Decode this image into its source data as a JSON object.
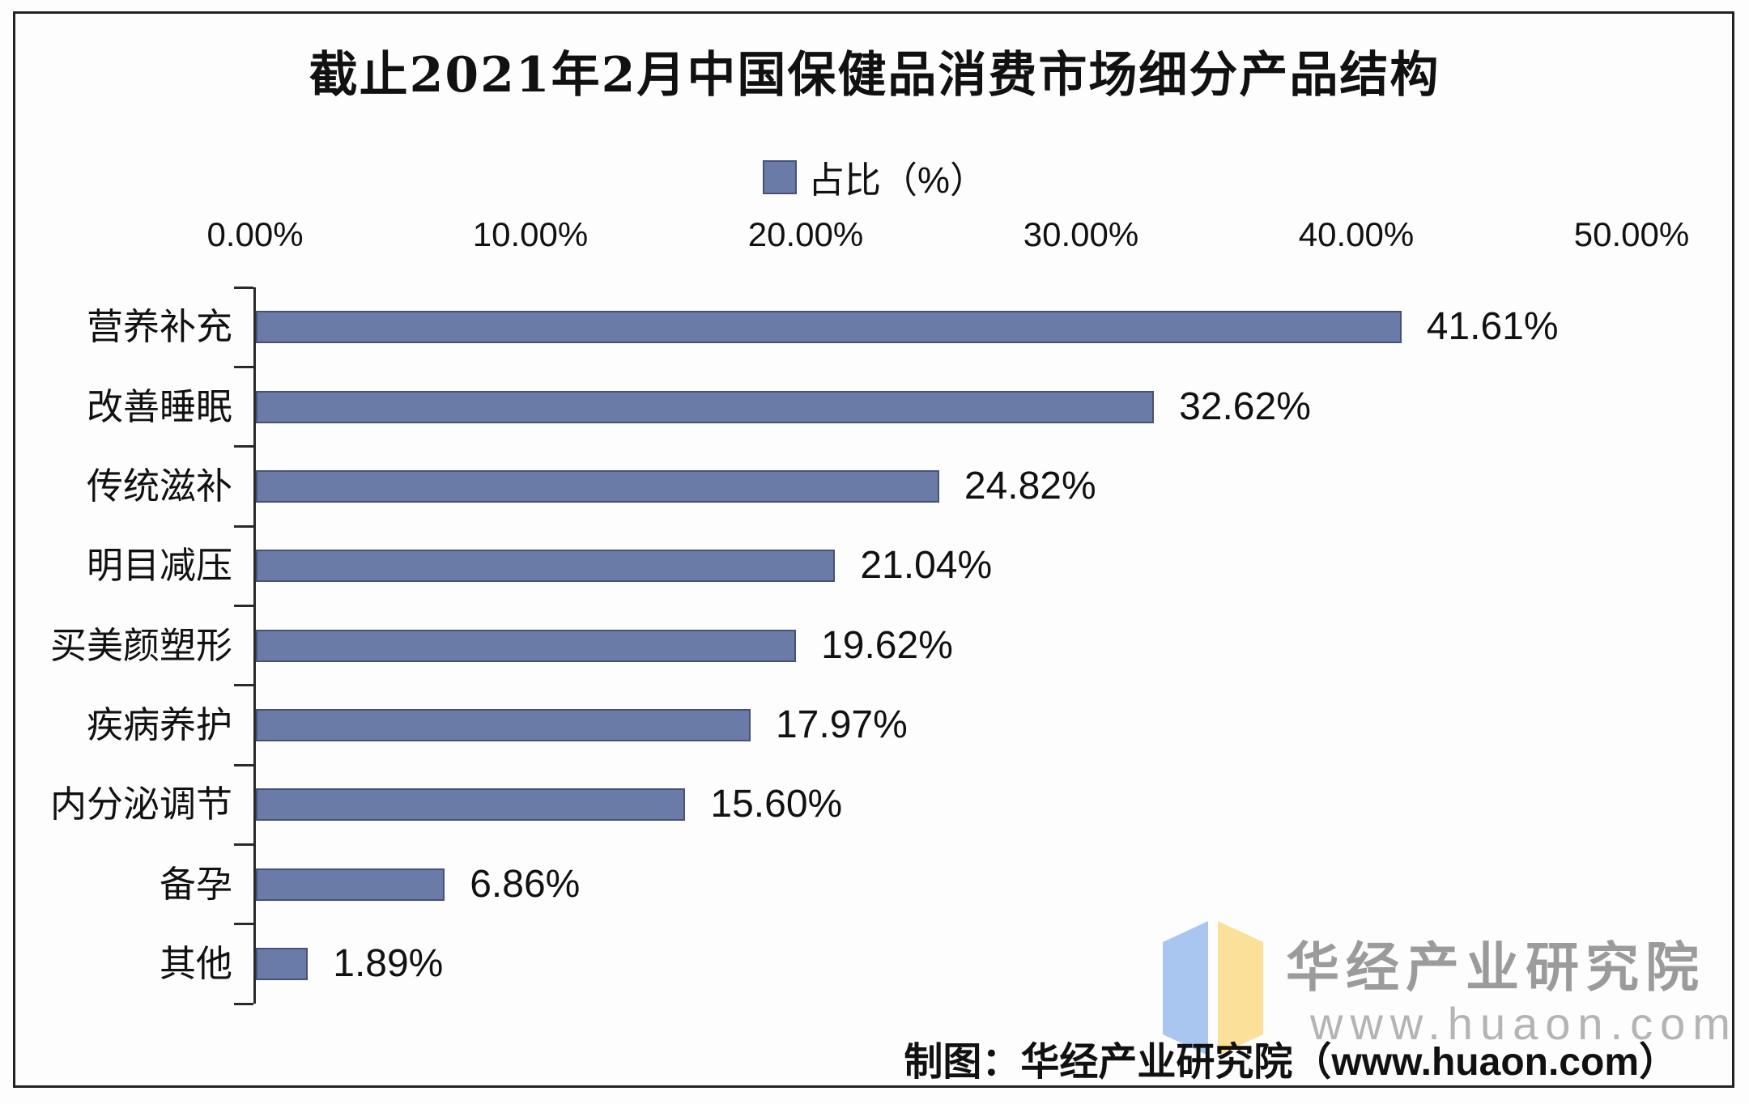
{
  "chart_data": {
    "type": "bar",
    "orientation": "horizontal",
    "title": "截止2021年2月中国保健品消费市场细分产品结构",
    "legend": "占比（%）",
    "categories": [
      "营养补充",
      "改善睡眠",
      "传统滋补",
      "明目减压",
      "买美颜塑形",
      "疾病养护",
      "内分泌调节",
      "备孕",
      "其他"
    ],
    "values": [
      41.61,
      32.62,
      24.82,
      21.04,
      19.62,
      17.97,
      15.6,
      6.86,
      1.89
    ],
    "value_labels": [
      "41.61%",
      "32.62%",
      "24.82%",
      "21.04%",
      "19.62%",
      "17.97%",
      "15.60%",
      "6.86%",
      "1.89%"
    ],
    "x_ticks": [
      "0.00%",
      "10.00%",
      "20.00%",
      "30.00%",
      "40.00%",
      "50.00%"
    ],
    "xlim": [
      0,
      50
    ],
    "grid": false,
    "legend_position": "top-center",
    "bar_color": "#6b7ba7",
    "bar_border_color": "#46517a",
    "axis_color": "#2a2a2a"
  },
  "footer": {
    "attribution": "制图：华经产业研究院（www.huaon.com）"
  },
  "watermark": {
    "brand": "华经产业研究院",
    "site": "www.huaon.com",
    "icon_left_color": "#a9c6f1",
    "icon_right_color": "#fbe099"
  }
}
